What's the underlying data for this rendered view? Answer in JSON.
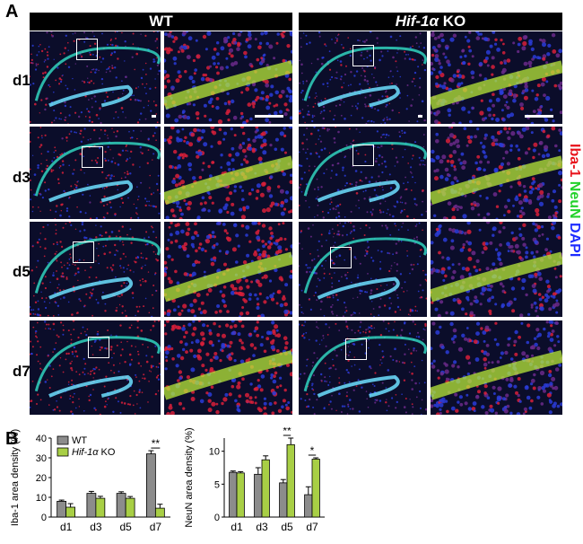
{
  "panel_a": {
    "letter": "A",
    "headers": {
      "wt": "WT",
      "ko_gene": "Hif-1α",
      "ko_suffix": " KO"
    },
    "rows": [
      "d1",
      "d3",
      "d5",
      "d7"
    ],
    "stain_labels": [
      {
        "text": "Iba-1",
        "color": "#e8141c"
      },
      {
        "text": "NeuN",
        "color": "#22d12a"
      },
      {
        "text": "DAPI",
        "color": "#1d2bff"
      }
    ]
  },
  "panel_b": {
    "letter": "B",
    "legend": {
      "wt": "WT",
      "ko_gene": "Hif-1α",
      "ko_suffix": " KO"
    }
  },
  "colors": {
    "wt_bar": "#8c8c8c",
    "ko_bar": "#a8cf45"
  },
  "chart_data": [
    {
      "type": "bar",
      "ylabel": "Iba-1 area density (%)",
      "categories": [
        "d1",
        "d3",
        "d5",
        "d7"
      ],
      "ylim": [
        0,
        40
      ],
      "yticks": [
        0,
        10,
        20,
        30,
        40
      ],
      "series": [
        {
          "name": "WT",
          "values": [
            8,
            12,
            12,
            32
          ],
          "errors": [
            0.6,
            1.0,
            0.8,
            1.6
          ]
        },
        {
          "name": "Hif-1α KO",
          "values": [
            5,
            9.5,
            9.5,
            4.5
          ],
          "errors": [
            1.8,
            1.0,
            0.9,
            2.0
          ]
        }
      ],
      "annotations": [
        {
          "category": "d7",
          "text": "**"
        }
      ]
    },
    {
      "type": "bar",
      "ylabel": "NeuN area density (%)",
      "categories": [
        "d1",
        "d3",
        "d5",
        "d7"
      ],
      "ylim": [
        0,
        12
      ],
      "yticks": [
        0,
        5,
        10
      ],
      "series": [
        {
          "name": "WT",
          "values": [
            6.8,
            6.5,
            5.2,
            3.4
          ],
          "errors": [
            0.2,
            1.0,
            0.5,
            1.2
          ]
        },
        {
          "name": "Hif-1α KO",
          "values": [
            6.7,
            8.7,
            11.0,
            8.8
          ],
          "errors": [
            0.2,
            0.6,
            1.0,
            0.2
          ]
        }
      ],
      "annotations": [
        {
          "category": "d5",
          "text": "**"
        },
        {
          "category": "d7",
          "text": "*"
        }
      ]
    }
  ]
}
